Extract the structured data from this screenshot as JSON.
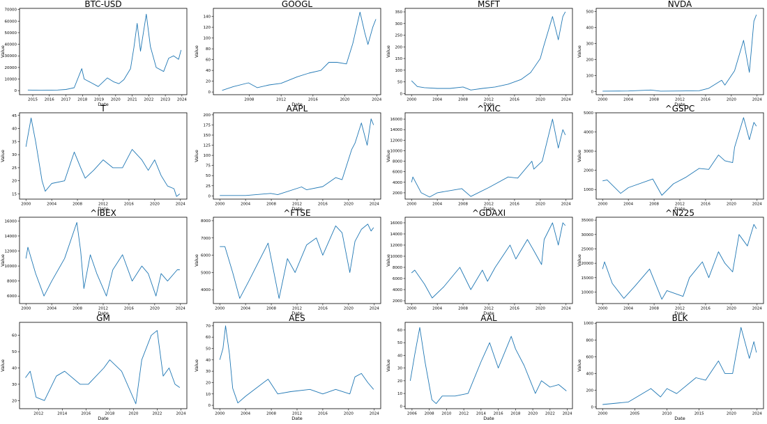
{
  "figure": {
    "line_color": "#1f77b4",
    "background": "#ffffff",
    "grid": false,
    "legend": "none"
  },
  "chart_data": [
    {
      "type": "line",
      "title": "BTC-USD",
      "xlabel": "Date",
      "ylabel": "Value",
      "xlim": [
        2014.2,
        2024.3
      ],
      "ylim": [
        -3500,
        71000
      ],
      "xticks": [
        2015,
        2016,
        2017,
        2018,
        2019,
        2020,
        2021,
        2022,
        2023,
        2024
      ],
      "yticks": [
        0,
        10000,
        20000,
        30000,
        40000,
        50000,
        60000,
        70000
      ],
      "x": [
        2014.7,
        2015.5,
        2016.5,
        2017.0,
        2017.5,
        2017.96,
        2018.1,
        2018.5,
        2018.95,
        2019.5,
        2019.9,
        2020.2,
        2020.5,
        2020.9,
        2021.1,
        2021.3,
        2021.5,
        2021.85,
        2022.1,
        2022.45,
        2022.9,
        2023.2,
        2023.5,
        2023.8,
        2023.95
      ],
      "y": [
        500,
        300,
        500,
        1000,
        2500,
        19000,
        10000,
        7000,
        3500,
        11000,
        7500,
        6000,
        9500,
        19000,
        37000,
        58000,
        34000,
        66000,
        38000,
        20000,
        16500,
        28000,
        30000,
        27000,
        35000
      ]
    },
    {
      "type": "line",
      "title": "GOOGL",
      "xlabel": "Date",
      "ylabel": "Value",
      "xlim": [
        2003.5,
        2024.5
      ],
      "ylim": [
        -5,
        155
      ],
      "xticks": [
        2008,
        2012,
        2016,
        2020,
        2024
      ],
      "yticks": [
        0,
        20,
        40,
        60,
        80,
        100,
        120,
        140
      ],
      "x": [
        2004.6,
        2006.0,
        2007.9,
        2009.0,
        2010.5,
        2012.0,
        2014.0,
        2015.5,
        2017.0,
        2018.0,
        2019.0,
        2020.2,
        2021.0,
        2021.9,
        2022.5,
        2022.9,
        2023.5,
        2023.9
      ],
      "y": [
        3,
        10,
        17,
        8,
        13,
        16,
        28,
        35,
        40,
        55,
        55,
        52,
        90,
        148,
        110,
        88,
        120,
        135
      ]
    },
    {
      "type": "line",
      "title": "MSFT",
      "xlabel": "Date",
      "ylabel": "Value",
      "xlim": [
        1999,
        2025
      ],
      "ylim": [
        -5,
        365
      ],
      "xticks": [
        2000,
        2004,
        2008,
        2012,
        2016,
        2020,
        2024
      ],
      "yticks": [
        0,
        50,
        100,
        150,
        200,
        250,
        300,
        350
      ],
      "x": [
        2000.0,
        2000.9,
        2002.0,
        2004.0,
        2006.0,
        2008.0,
        2009.2,
        2011.0,
        2013.0,
        2015.0,
        2017.0,
        2018.5,
        2020.0,
        2020.5,
        2021.9,
        2022.8,
        2023.5,
        2023.9
      ],
      "y": [
        55,
        30,
        25,
        22,
        22,
        28,
        15,
        22,
        28,
        40,
        60,
        90,
        150,
        200,
        330,
        230,
        330,
        350
      ]
    },
    {
      "type": "line",
      "title": "NVDA",
      "xlabel": "Date",
      "ylabel": "Value",
      "xlim": [
        1999,
        2025
      ],
      "ylim": [
        -20,
        520
      ],
      "xticks": [
        2000,
        2004,
        2008,
        2012,
        2016,
        2020,
        2024
      ],
      "yticks": [
        0,
        100,
        200,
        300,
        400,
        500
      ],
      "x": [
        2000.0,
        2004.0,
        2007.5,
        2009.0,
        2012.0,
        2015.0,
        2016.5,
        2018.5,
        2019.0,
        2020.5,
        2021.9,
        2022.8,
        2023.5,
        2023.9
      ],
      "y": [
        2,
        3,
        9,
        2,
        3,
        5,
        20,
        70,
        40,
        130,
        320,
        120,
        440,
        480
      ]
    },
    {
      "type": "line",
      "title": "T",
      "xlabel": "Date",
      "ylabel": "Value",
      "xlim": [
        1999,
        2025
      ],
      "ylim": [
        13,
        46
      ],
      "xticks": [
        2000,
        2004,
        2008,
        2012,
        2016,
        2020,
        2024
      ],
      "yticks": [
        15,
        20,
        25,
        30,
        35,
        40,
        45
      ],
      "x": [
        2000.0,
        2000.8,
        2001.5,
        2002.5,
        2003.0,
        2004.0,
        2006.0,
        2007.5,
        2008.5,
        2009.2,
        2010.5,
        2012.0,
        2013.5,
        2015.0,
        2016.5,
        2018.0,
        2019.0,
        2020.0,
        2021.0,
        2022.0,
        2023.0,
        2023.4,
        2023.9
      ],
      "y": [
        33,
        44,
        35,
        20,
        16,
        19,
        20,
        31,
        25,
        21,
        24,
        28,
        25,
        25,
        32,
        28,
        24,
        28,
        22,
        18,
        17,
        14,
        15
      ]
    },
    {
      "type": "line",
      "title": "AAPL",
      "xlabel": "Date",
      "ylabel": "Value",
      "xlim": [
        1999,
        2025
      ],
      "ylim": [
        -8,
        205
      ],
      "xticks": [
        2000,
        2004,
        2008,
        2012,
        2016,
        2020,
        2024
      ],
      "yticks": [
        0,
        25,
        50,
        75,
        100,
        125,
        150,
        175,
        200
      ],
      "x": [
        2000.0,
        2004.0,
        2007.9,
        2009.0,
        2012.7,
        2013.5,
        2016.0,
        2018.0,
        2019.0,
        2020.5,
        2021.0,
        2022.0,
        2022.9,
        2023.5,
        2023.9
      ],
      "y": [
        1,
        1,
        6,
        3,
        22,
        15,
        23,
        45,
        40,
        115,
        130,
        180,
        125,
        190,
        175
      ]
    },
    {
      "type": "line",
      "title": "^IXIC",
      "xlabel": "Date",
      "ylabel": "Value",
      "xlim": [
        1999,
        2025
      ],
      "ylim": [
        800,
        17200
      ],
      "xticks": [
        2000,
        2004,
        2008,
        2012,
        2016,
        2020,
        2024
      ],
      "yticks": [
        2000,
        4000,
        6000,
        8000,
        10000,
        12000,
        14000,
        16000
      ],
      "x": [
        2000.0,
        2000.2,
        2001.5,
        2002.8,
        2004.0,
        2007.8,
        2009.2,
        2012.0,
        2015.0,
        2016.5,
        2018.7,
        2019.0,
        2020.3,
        2021.9,
        2022.8,
        2023.5,
        2023.9
      ],
      "y": [
        4000,
        5000,
        2000,
        1200,
        2000,
        2800,
        1300,
        3000,
        5000,
        4800,
        8000,
        6500,
        8000,
        16000,
        10500,
        14000,
        13000
      ]
    },
    {
      "type": "line",
      "title": "^GSPC",
      "xlabel": "Date",
      "ylabel": "Value",
      "xlim": [
        1999,
        2025
      ],
      "ylim": [
        500,
        5000
      ],
      "xticks": [
        2000,
        2004,
        2008,
        2012,
        2016,
        2020,
        2024
      ],
      "yticks": [
        1000,
        2000,
        3000,
        4000,
        5000
      ],
      "x": [
        2000.0,
        2000.7,
        2002.8,
        2004.0,
        2007.8,
        2009.2,
        2011.0,
        2013.0,
        2015.0,
        2016.5,
        2018.0,
        2019.0,
        2020.2,
        2020.5,
        2021.9,
        2022.8,
        2023.5,
        2023.9
      ],
      "y": [
        1450,
        1500,
        800,
        1100,
        1550,
        700,
        1300,
        1650,
        2100,
        2050,
        2800,
        2500,
        2400,
        3200,
        4750,
        3600,
        4500,
        4300
      ]
    },
    {
      "type": "line",
      "title": "^IBEX",
      "xlabel": "Date",
      "ylabel": "Value",
      "xlim": [
        1999,
        2025
      ],
      "ylim": [
        5000,
        16500
      ],
      "xticks": [
        2000,
        2004,
        2008,
        2012,
        2016,
        2020,
        2024
      ],
      "yticks": [
        6000,
        8000,
        10000,
        12000,
        14000,
        16000
      ],
      "x": [
        2000.0,
        2000.3,
        2001.5,
        2002.8,
        2004.0,
        2006.0,
        2007.9,
        2008.5,
        2009.0,
        2010.0,
        2011.0,
        2012.5,
        2013.5,
        2015.0,
        2016.5,
        2018.0,
        2019.0,
        2020.2,
        2021.0,
        2022.0,
        2023.5,
        2023.9
      ],
      "y": [
        11000,
        12500,
        9000,
        6000,
        8000,
        11000,
        15800,
        12000,
        7000,
        11500,
        9000,
        6000,
        9500,
        11500,
        8000,
        10000,
        9000,
        6000,
        9000,
        8000,
        9500,
        9500
      ]
    },
    {
      "type": "line",
      "title": "^FTSE",
      "xlabel": "Date",
      "ylabel": "Value",
      "xlim": [
        1999,
        2025
      ],
      "ylim": [
        3200,
        8200
      ],
      "xticks": [
        2000,
        2004,
        2008,
        2012,
        2016,
        2020,
        2024
      ],
      "yticks": [
        4000,
        5000,
        6000,
        7000,
        8000
      ],
      "x": [
        2000.0,
        2000.8,
        2002.0,
        2003.1,
        2004.5,
        2007.5,
        2009.2,
        2010.5,
        2011.7,
        2013.5,
        2015.0,
        2016.0,
        2018.0,
        2019.0,
        2020.2,
        2021.0,
        2022.0,
        2023.0,
        2023.5,
        2023.9
      ],
      "y": [
        6500,
        6500,
        5000,
        3500,
        4500,
        6700,
        3500,
        5800,
        5000,
        6600,
        7000,
        6000,
        7700,
        7300,
        5000,
        6800,
        7500,
        7800,
        7400,
        7600
      ]
    },
    {
      "type": "line",
      "title": "^GDAXI",
      "xlabel": "Date",
      "ylabel": "Value",
      "xlim": [
        1999,
        2025
      ],
      "ylim": [
        1500,
        17000
      ],
      "xticks": [
        2000,
        2004,
        2008,
        2012,
        2016,
        2020,
        2024
      ],
      "yticks": [
        2000,
        4000,
        6000,
        8000,
        10000,
        12000,
        14000,
        16000
      ],
      "x": [
        2000.0,
        2000.5,
        2002.0,
        2003.2,
        2005.0,
        2007.5,
        2009.2,
        2011.0,
        2011.8,
        2013.0,
        2015.3,
        2016.2,
        2018.0,
        2019.0,
        2020.2,
        2020.6,
        2021.9,
        2022.8,
        2023.5,
        2023.9
      ],
      "y": [
        7000,
        7500,
        5000,
        2500,
        4500,
        8000,
        4000,
        7500,
        5500,
        8000,
        12000,
        9500,
        13000,
        11000,
        8500,
        13000,
        16000,
        12000,
        16000,
        15500
      ]
    },
    {
      "type": "line",
      "title": "^N225",
      "xlabel": "Date",
      "ylabel": "Value",
      "xlim": [
        1999,
        2025
      ],
      "ylim": [
        6000,
        36000
      ],
      "xticks": [
        2000,
        2004,
        2008,
        2012,
        2016,
        2020,
        2024
      ],
      "yticks": [
        10000,
        15000,
        20000,
        25000,
        30000,
        35000
      ],
      "x": [
        2000.0,
        2000.3,
        2001.5,
        2003.3,
        2005.0,
        2007.3,
        2009.2,
        2010.0,
        2012.5,
        2013.5,
        2015.5,
        2016.5,
        2018.0,
        2019.0,
        2020.2,
        2021.2,
        2022.5,
        2023.5,
        2023.9
      ],
      "y": [
        18000,
        20500,
        13000,
        7800,
        12000,
        18000,
        7500,
        10500,
        8500,
        15000,
        20500,
        15000,
        24000,
        20000,
        17000,
        30000,
        26000,
        33500,
        32000
      ]
    },
    {
      "type": "line",
      "title": "GM",
      "xlabel": "Date",
      "ylabel": "Value",
      "xlim": [
        2010.4,
        2024.5
      ],
      "ylim": [
        15,
        68
      ],
      "xticks": [
        2012,
        2014,
        2016,
        2018,
        2020,
        2022,
        2024
      ],
      "yticks": [
        20,
        30,
        40,
        50,
        60
      ],
      "x": [
        2010.9,
        2011.3,
        2011.8,
        2012.5,
        2013.5,
        2014.2,
        2015.5,
        2016.2,
        2017.5,
        2018.0,
        2019.0,
        2020.2,
        2020.7,
        2021.5,
        2022.0,
        2022.5,
        2023.0,
        2023.5,
        2023.9
      ],
      "y": [
        34,
        38,
        22,
        20,
        35,
        38,
        30,
        30,
        40,
        45,
        38,
        18,
        45,
        60,
        63,
        35,
        40,
        30,
        28
      ]
    },
    {
      "type": "line",
      "title": "AES",
      "xlabel": "Date",
      "ylabel": "Value",
      "xlim": [
        1999,
        2025
      ],
      "ylim": [
        -3,
        73
      ],
      "xticks": [
        2000,
        2004,
        2008,
        2012,
        2016,
        2020,
        2024
      ],
      "yticks": [
        0,
        10,
        20,
        30,
        40,
        50,
        60,
        70
      ],
      "x": [
        2000.0,
        2000.5,
        2000.9,
        2001.5,
        2002.0,
        2002.8,
        2004.0,
        2007.5,
        2009.0,
        2011.0,
        2014.0,
        2016.0,
        2018.0,
        2020.2,
        2021.0,
        2022.0,
        2023.0,
        2023.9
      ],
      "y": [
        40,
        50,
        70,
        45,
        15,
        2,
        8,
        23,
        10,
        12,
        14,
        10,
        14,
        10,
        25,
        28,
        20,
        14
      ]
    },
    {
      "type": "line",
      "title": "AAL",
      "xlabel": "Date",
      "ylabel": "Value",
      "xlim": [
        2005.2,
        2024.6
      ],
      "ylim": [
        -2,
        66
      ],
      "xticks": [
        2006,
        2008,
        2010,
        2012,
        2014,
        2016,
        2018,
        2020,
        2022,
        2024
      ],
      "yticks": [
        0,
        10,
        20,
        30,
        40,
        50,
        60
      ],
      "x": [
        2005.8,
        2006.3,
        2006.9,
        2007.5,
        2008.3,
        2008.8,
        2009.5,
        2011.0,
        2012.5,
        2014.0,
        2015.0,
        2016.0,
        2017.5,
        2018.0,
        2019.0,
        2020.3,
        2021.0,
        2022.0,
        2023.0,
        2023.9
      ],
      "y": [
        20,
        40,
        62,
        35,
        5,
        2,
        8,
        8,
        10,
        35,
        50,
        30,
        55,
        45,
        32,
        10,
        20,
        15,
        17,
        12
      ]
    },
    {
      "type": "line",
      "title": "BLK",
      "xlabel": "Date",
      "ylabel": "Value",
      "xlim": [
        1999,
        2025
      ],
      "ylim": [
        -20,
        1010
      ],
      "xticks": [
        2000,
        2005,
        2010,
        2015,
        2020,
        2024
      ],
      "yticks": [
        0,
        200,
        400,
        600,
        800,
        1000
      ],
      "x": [
        2000.0,
        2004.0,
        2007.5,
        2009.0,
        2010.0,
        2011.5,
        2014.5,
        2016.0,
        2018.0,
        2019.0,
        2020.2,
        2021.5,
        2022.8,
        2023.5,
        2023.9
      ],
      "y": [
        30,
        60,
        220,
        120,
        220,
        160,
        350,
        320,
        550,
        400,
        400,
        950,
        580,
        780,
        650
      ]
    }
  ]
}
